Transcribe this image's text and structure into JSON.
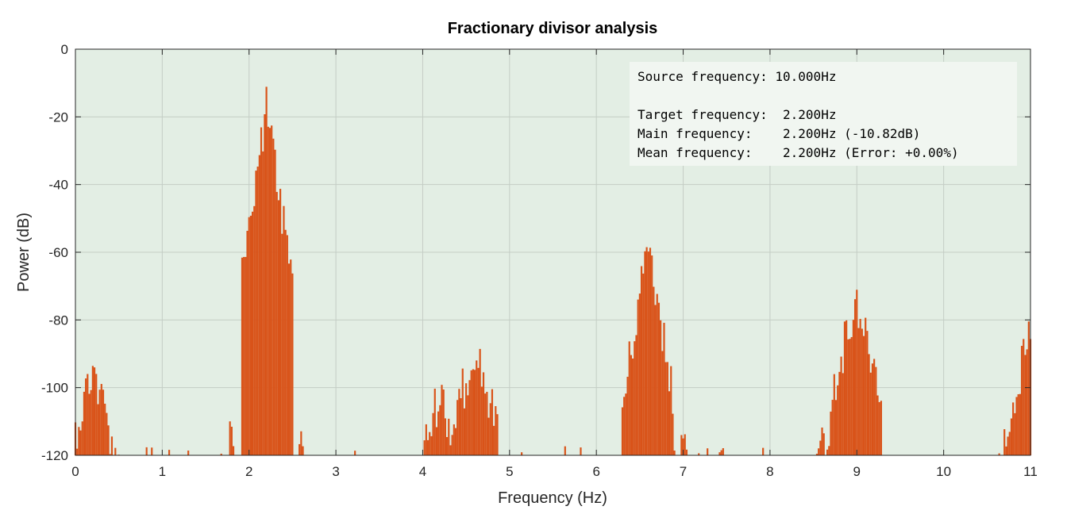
{
  "chart_data": {
    "type": "bar",
    "title": "Fractionary divisor analysis",
    "xlabel": "Frequency (Hz)",
    "ylabel": "Power (dB)",
    "xlim": [
      0,
      11
    ],
    "ylim": [
      -120,
      0
    ],
    "xticks": [
      "0",
      "1",
      "2",
      "3",
      "4",
      "5",
      "6",
      "7",
      "8",
      "9",
      "10",
      "11"
    ],
    "yticks": [
      "0",
      "-20",
      "-40",
      "-60",
      "-80",
      "-100",
      "-120"
    ],
    "grid": true,
    "colors": {
      "bars": "#d95319",
      "plot_background": "#e3eee4",
      "grid": "#c4cdc5",
      "axis": "#262626"
    },
    "peaks": [
      {
        "freq": 0.0,
        "db": -111
      },
      {
        "freq": 0.2,
        "db": -87
      },
      {
        "freq": 1.8,
        "db": -108
      },
      {
        "freq": 2.2,
        "db": -11
      },
      {
        "freq": 2.6,
        "db": -111
      },
      {
        "freq": 4.2,
        "db": -94
      },
      {
        "freq": 4.6,
        "db": -81
      },
      {
        "freq": 6.6,
        "db": -48.5
      },
      {
        "freq": 7.0,
        "db": -109
      },
      {
        "freq": 8.6,
        "db": -108
      },
      {
        "freq": 9.0,
        "db": -67
      },
      {
        "freq": 11.0,
        "db": -78
      }
    ],
    "info_box": {
      "lines": [
        "Source frequency: 10.000Hz",
        "",
        "Target frequency:  2.200Hz",
        "Main frequency:    2.200Hz (-10.82dB)",
        "Mean frequency:    2.200Hz (Error: +0.00%)"
      ]
    }
  }
}
